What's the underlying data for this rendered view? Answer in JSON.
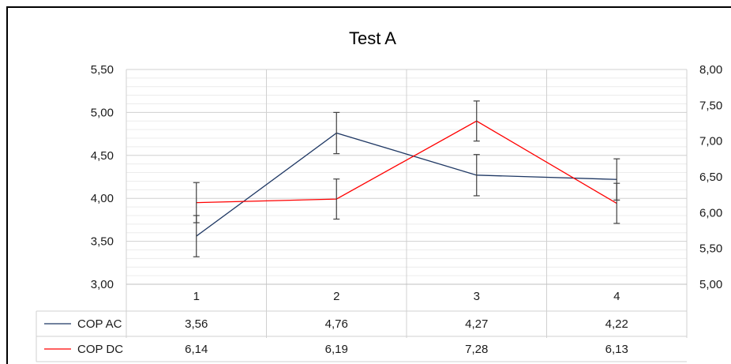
{
  "chart_data": {
    "type": "line",
    "title": "Test A",
    "categories": [
      "1",
      "2",
      "3",
      "4"
    ],
    "y_left": {
      "min": 3.0,
      "max": 5.5,
      "major_step": 0.5,
      "minor_step": 0.1,
      "tick_labels": [
        "3,00",
        "3,50",
        "4,00",
        "4,50",
        "5,00",
        "5,50"
      ]
    },
    "y_right": {
      "min": 5.0,
      "max": 8.0,
      "major_step": 0.5,
      "tick_labels": [
        "5,00",
        "5,50",
        "6,00",
        "6,50",
        "7,00",
        "7,50",
        "8,00"
      ]
    },
    "grid": true,
    "legend": "data-table",
    "series": [
      {
        "name": "COP AC",
        "axis": "left",
        "color": "#1f3864",
        "values": [
          3.56,
          4.76,
          4.27,
          4.22
        ],
        "value_labels": [
          "3,56",
          "4,76",
          "4,27",
          "4,22"
        ],
        "error": [
          0.24,
          0.24,
          0.24,
          0.24
        ]
      },
      {
        "name": "COP DC",
        "axis": "right",
        "color": "#ff0000",
        "values": [
          6.14,
          6.19,
          7.28,
          6.13
        ],
        "value_labels": [
          "6,14",
          "6,19",
          "7,28",
          "6,13"
        ],
        "error": [
          0.28,
          0.28,
          0.28,
          0.28
        ]
      }
    ]
  }
}
